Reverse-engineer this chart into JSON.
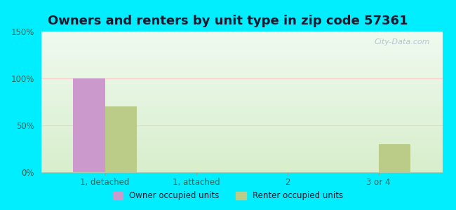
{
  "title": "Owners and renters by unit type in zip code 57361",
  "categories": [
    "1, detached",
    "1, attached",
    "2",
    "3 or 4"
  ],
  "owner_values": [
    100,
    0,
    0,
    0
  ],
  "renter_values": [
    70,
    0,
    0,
    30
  ],
  "owner_color": "#cc99cc",
  "renter_color": "#bbcc88",
  "ylim": [
    0,
    150
  ],
  "yticks": [
    0,
    50,
    100,
    150
  ],
  "ytick_labels": [
    "0%",
    "50%",
    "100%",
    "150%"
  ],
  "bar_width": 0.35,
  "bg_outer": "#00eeff",
  "bg_plot_top": "#f0faf0",
  "bg_plot_bottom": "#d8eecc",
  "legend_labels": [
    "Owner occupied units",
    "Renter occupied units"
  ],
  "title_fontsize": 13,
  "watermark": "City-Data.com"
}
